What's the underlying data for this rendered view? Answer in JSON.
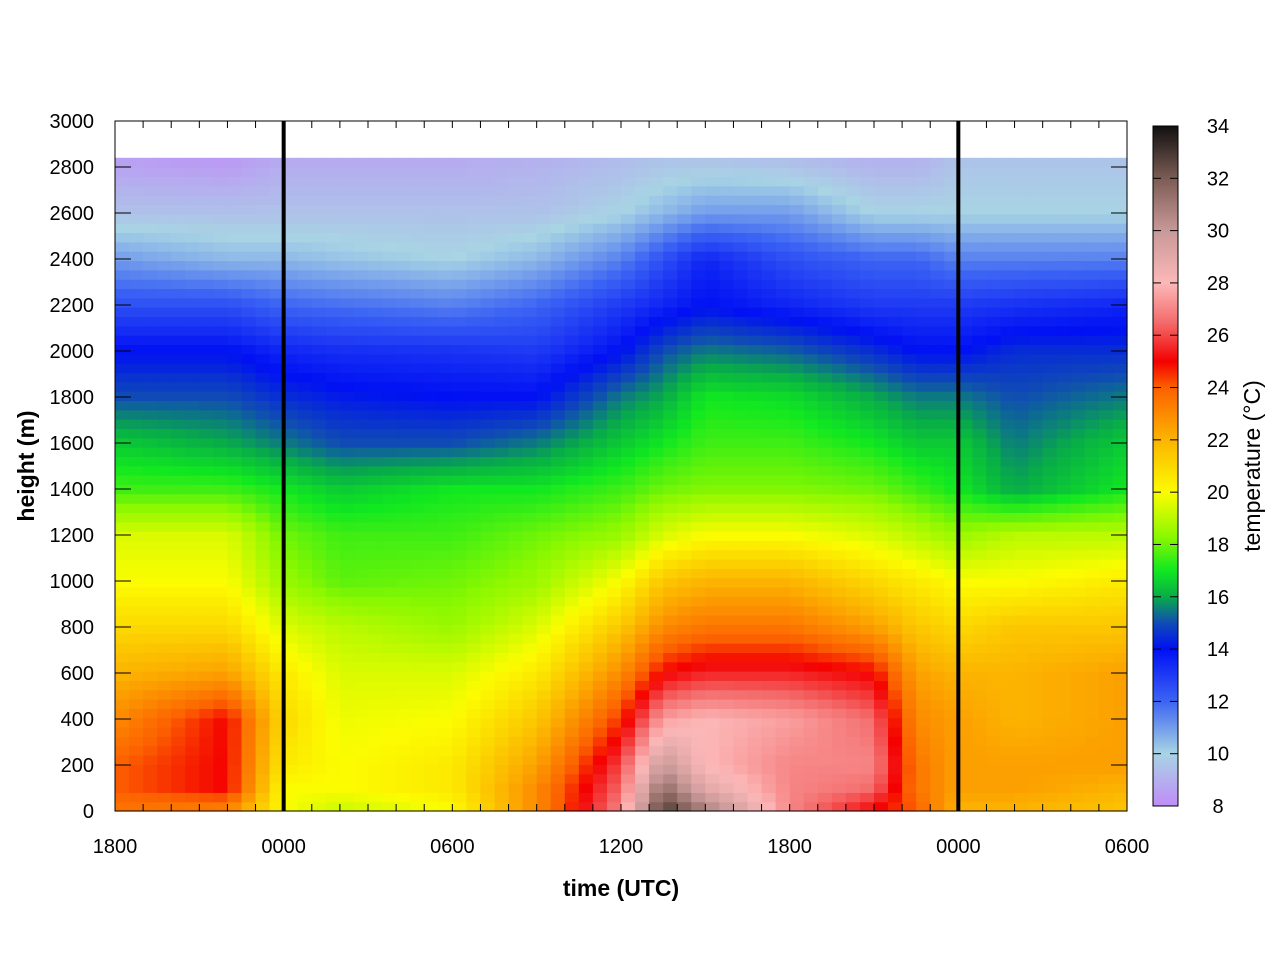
{
  "chart_data": {
    "type": "heatmap",
    "title": "",
    "xlabel": "time (UTC)",
    "ylabel": "height (m)",
    "colorbar_label": "temperature (°C)",
    "x_tick_labels": [
      "1800",
      "0000",
      "0600",
      "1200",
      "1800",
      "0000",
      "0600"
    ],
    "x_range_hours": [
      0,
      36
    ],
    "y_ticks": [
      0,
      200,
      400,
      600,
      800,
      1000,
      1200,
      1400,
      1600,
      1800,
      2000,
      2200,
      2400,
      2600,
      2800,
      3000
    ],
    "ylim": [
      0,
      3000
    ],
    "data_top_height": 2840,
    "colorbar_ticks": [
      8,
      10,
      12,
      14,
      16,
      18,
      20,
      22,
      24,
      26,
      28,
      30,
      32,
      34
    ],
    "clim": [
      8,
      34
    ],
    "colormap_stops": [
      {
        "v": 8,
        "color": "#c08cf8"
      },
      {
        "v": 10,
        "color": "#a8d4e4"
      },
      {
        "v": 12,
        "color": "#3c64f4"
      },
      {
        "v": 14,
        "color": "#0010f4"
      },
      {
        "v": 15,
        "color": "#104cb4"
      },
      {
        "v": 16,
        "color": "#08ac48"
      },
      {
        "v": 17,
        "color": "#10e820"
      },
      {
        "v": 18.3,
        "color": "#8cf800"
      },
      {
        "v": 20,
        "color": "#fcfc00"
      },
      {
        "v": 22,
        "color": "#fcb400"
      },
      {
        "v": 24,
        "color": "#fc6000"
      },
      {
        "v": 25,
        "color": "#f40000"
      },
      {
        "v": 26.5,
        "color": "#f46c6c"
      },
      {
        "v": 28,
        "color": "#fcb8b8"
      },
      {
        "v": 30,
        "color": "#c89898"
      },
      {
        "v": 32,
        "color": "#7c5c54"
      },
      {
        "v": 34,
        "color": "#101010"
      }
    ],
    "midnight_lines_hours": [
      6,
      30
    ],
    "time_hours": [
      0,
      4,
      6,
      8,
      12,
      15,
      18,
      19.5,
      21,
      24,
      27,
      28.5,
      30,
      32,
      36
    ],
    "temperature_profiles": [
      {
        "height": 0,
        "values": [
          23.5,
          23.0,
          20.0,
          19.2,
          20.0,
          23.0,
          27.0,
          33.0,
          31.0,
          27.0,
          25.0,
          24.0,
          22.0,
          22.0,
          21.5
        ]
      },
      {
        "height": 100,
        "values": [
          24.0,
          25.0,
          20.0,
          20.0,
          20.5,
          23.0,
          26.5,
          31.5,
          29.0,
          27.0,
          26.5,
          23.5,
          22.5,
          22.5,
          22.0
        ]
      },
      {
        "height": 200,
        "values": [
          24.0,
          25.0,
          20.5,
          20.0,
          20.5,
          22.5,
          26.0,
          30.0,
          28.0,
          27.0,
          27.0,
          23.5,
          22.5,
          22.5,
          22.5
        ]
      },
      {
        "height": 400,
        "values": [
          23.0,
          25.0,
          21.0,
          19.8,
          20.0,
          21.5,
          24.5,
          27.5,
          28.0,
          27.5,
          26.5,
          23.0,
          22.5,
          22.0,
          22.5
        ]
      },
      {
        "height": 600,
        "values": [
          22.0,
          22.5,
          20.5,
          19.5,
          19.5,
          20.5,
          23.0,
          25.0,
          25.5,
          25.5,
          25.0,
          22.5,
          22.0,
          22.0,
          22.5
        ]
      },
      {
        "height": 800,
        "values": [
          21.0,
          21.0,
          19.5,
          19.0,
          18.5,
          19.5,
          21.5,
          23.0,
          23.5,
          23.5,
          22.5,
          21.5,
          21.0,
          21.5,
          21.5
        ]
      },
      {
        "height": 1000,
        "values": [
          20.0,
          20.0,
          18.5,
          17.8,
          18.0,
          18.5,
          20.0,
          21.5,
          22.0,
          22.0,
          21.0,
          20.5,
          20.0,
          20.0,
          20.5
        ]
      },
      {
        "height": 1200,
        "values": [
          19.5,
          19.5,
          18.0,
          17.5,
          17.5,
          18.0,
          18.5,
          19.5,
          20.0,
          20.0,
          19.5,
          19.0,
          18.5,
          19.0,
          19.0
        ]
      },
      {
        "height": 1400,
        "values": [
          17.5,
          17.5,
          17.0,
          16.5,
          17.0,
          17.0,
          17.5,
          18.0,
          18.2,
          18.2,
          18.0,
          17.5,
          17.0,
          16.0,
          17.0
        ]
      },
      {
        "height": 1600,
        "values": [
          16.5,
          16.0,
          15.5,
          15.0,
          15.0,
          15.5,
          16.5,
          17.0,
          17.5,
          17.5,
          17.0,
          16.5,
          16.5,
          15.5,
          16.5
        ]
      },
      {
        "height": 1800,
        "values": [
          15.0,
          15.0,
          14.5,
          14.2,
          14.0,
          14.0,
          15.5,
          16.0,
          17.0,
          16.8,
          16.0,
          15.5,
          15.5,
          15.0,
          15.5
        ]
      },
      {
        "height": 2000,
        "values": [
          14.0,
          14.0,
          13.5,
          13.3,
          13.2,
          13.0,
          14.0,
          15.0,
          15.5,
          15.2,
          14.5,
          14.0,
          14.0,
          14.5,
          14.5
        ]
      },
      {
        "height": 2200,
        "values": [
          12.5,
          12.5,
          12.0,
          11.8,
          11.5,
          12.0,
          13.0,
          13.5,
          14.0,
          13.5,
          13.0,
          13.0,
          13.0,
          13.2,
          13.5
        ]
      },
      {
        "height": 2400,
        "values": [
          11.0,
          10.5,
          10.5,
          10.3,
          10.0,
          10.5,
          11.5,
          12.5,
          13.5,
          12.5,
          12.0,
          12.0,
          11.5,
          11.5,
          11.5
        ]
      },
      {
        "height": 2600,
        "values": [
          9.5,
          9.5,
          9.5,
          9.5,
          9.5,
          9.5,
          10.0,
          10.5,
          11.0,
          11.0,
          10.0,
          10.0,
          10.0,
          10.0,
          10.0
        ]
      },
      {
        "height": 2840,
        "values": [
          8.5,
          8.3,
          8.8,
          8.8,
          8.8,
          9.0,
          9.3,
          9.5,
          9.5,
          9.3,
          9.0,
          9.0,
          9.5,
          9.5,
          9.5
        ]
      }
    ]
  }
}
